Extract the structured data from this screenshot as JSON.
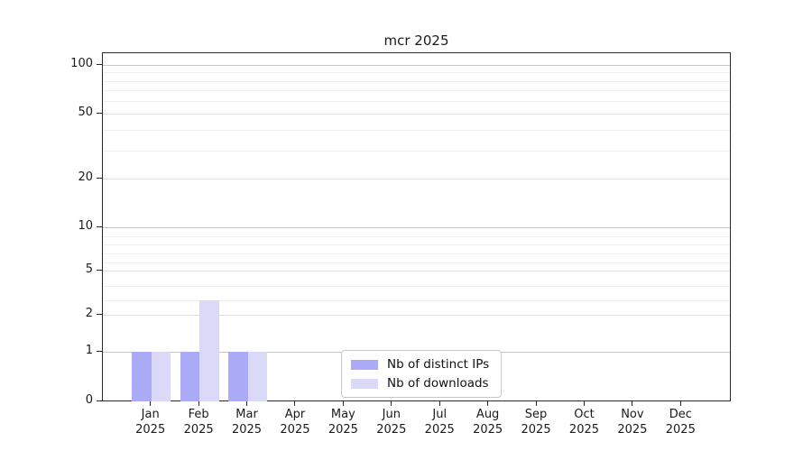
{
  "figure": {
    "background": "#ffffff",
    "title": "mcr 2025"
  },
  "chart_data": {
    "type": "bar",
    "title": "mcr 2025",
    "categories": [
      "Jan",
      "Feb",
      "Mar",
      "Apr",
      "May",
      "Jun",
      "Jul",
      "Aug",
      "Sep",
      "Oct",
      "Nov",
      "Dec"
    ],
    "x_year_label": "2025",
    "series": [
      {
        "name": "Nb of distinct IPs",
        "color": "#aaaaf6",
        "values": [
          1,
          1,
          1,
          0,
          0,
          0,
          0,
          0,
          0,
          0,
          0,
          0
        ]
      },
      {
        "name": "Nb of downloads",
        "color": "#dadaf8",
        "values": [
          1,
          3,
          1,
          0,
          0,
          0,
          0,
          0,
          0,
          0,
          0,
          0
        ]
      }
    ],
    "y_axis": {
      "scale": "log-like with 0 baseline",
      "tick_values": [
        0,
        1,
        2,
        5,
        10,
        20,
        50,
        100
      ],
      "tick_labels": [
        "0",
        "1",
        "2",
        "5",
        "10",
        "20",
        "50",
        "100"
      ],
      "minor_gridline_values": [
        3,
        4,
        6,
        7,
        8,
        9,
        30,
        40,
        60,
        70,
        80,
        90
      ],
      "range": [
        0,
        110
      ],
      "grid": true
    },
    "legend": {
      "position": "bottom-center",
      "entries": [
        "Nb of distinct IPs",
        "Nb of downloads"
      ]
    }
  }
}
